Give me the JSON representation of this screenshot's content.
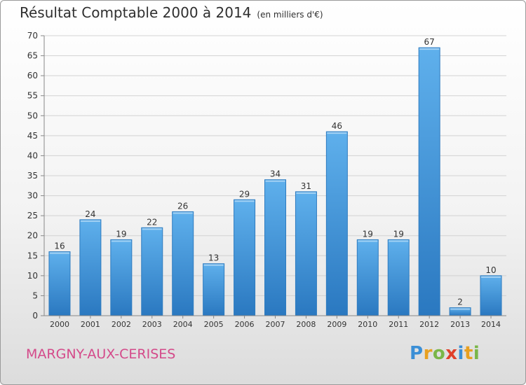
{
  "header": {
    "title": "Résultat Comptable 2000 à 2014",
    "unit": "(en milliers d'€)"
  },
  "footer": {
    "commune": "MARGNY-AUX-CERISES",
    "logo_letters": [
      "P",
      "r",
      "o",
      "x",
      "i",
      "t",
      "i"
    ]
  },
  "colors": {
    "bar": "#4a9be0",
    "bar_dark": "#2a78c0",
    "commune": "#d44a8a",
    "logo": [
      "#3b8fd6",
      "#e8a020",
      "#7ab648",
      "#e0402a",
      "#3b8fd6",
      "#e8a020",
      "#7ab648"
    ]
  },
  "chart_data": {
    "type": "bar",
    "title": "Résultat Comptable 2000 à 2014",
    "xlabel": "",
    "ylabel": "",
    "ylim": [
      0,
      70
    ],
    "yticks": [
      0,
      5,
      10,
      15,
      20,
      25,
      30,
      35,
      40,
      45,
      50,
      55,
      60,
      65,
      70
    ],
    "categories": [
      "2000",
      "2001",
      "2002",
      "2003",
      "2004",
      "2005",
      "2006",
      "2007",
      "2008",
      "2009",
      "2010",
      "2011",
      "2012",
      "2013",
      "2014"
    ],
    "values": [
      16,
      24,
      19,
      22,
      26,
      13,
      29,
      34,
      31,
      46,
      19,
      19,
      67,
      2,
      10
    ],
    "grid": true
  }
}
